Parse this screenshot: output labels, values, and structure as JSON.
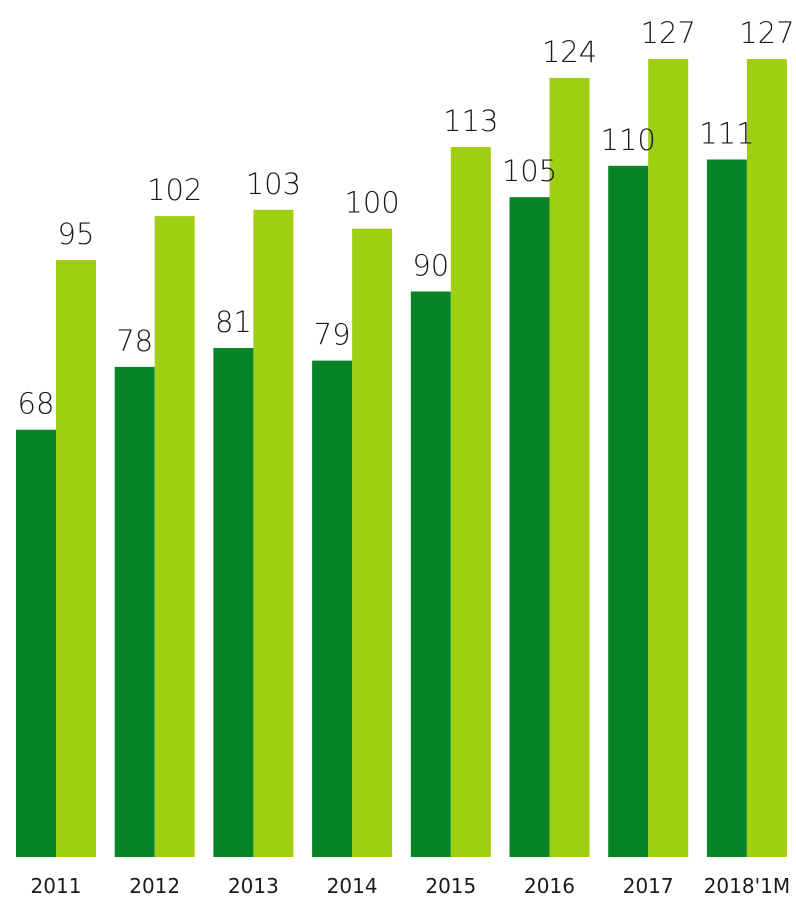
{
  "chart_data": {
    "type": "bar",
    "categories": [
      "2011",
      "2012",
      "2013",
      "2014",
      "2015",
      "2016",
      "2017",
      "2018'1M"
    ],
    "series": [
      {
        "values": [
          68,
          78,
          81,
          79,
          90,
          105,
          110,
          111
        ]
      },
      {
        "values": [
          95,
          102,
          103,
          100,
          113,
          124,
          127,
          127
        ]
      }
    ],
    "colors": [
      "#078427",
      "#9ecf11"
    ],
    "title": "",
    "xlabel": "",
    "ylabel": "",
    "ylim": [
      0,
      127
    ],
    "grid": false,
    "data_labels": true
  }
}
